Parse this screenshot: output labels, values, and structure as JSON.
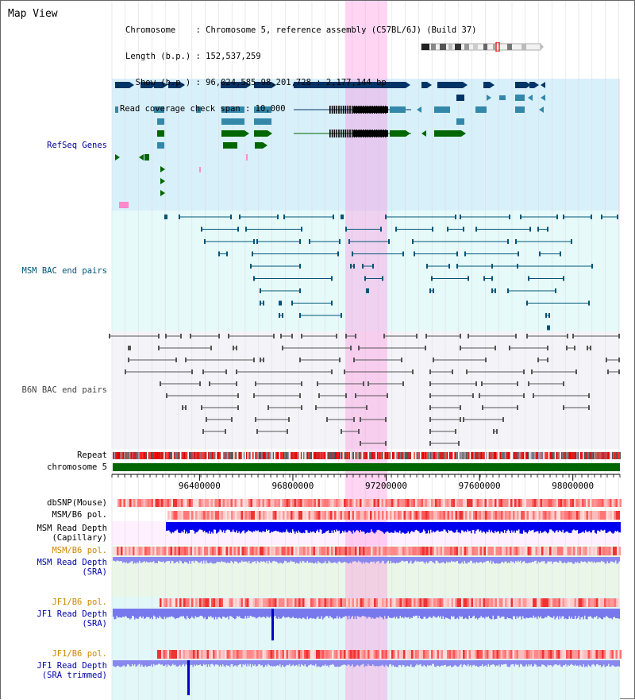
{
  "app": {
    "title": "Map View"
  },
  "info": {
    "chromosome_line": "Chromosome    : Chromosome 5, reference assembly (C57BL/6J) (Build 37)",
    "length_line": "Length (b.p.) : 152,537,259",
    "show_line": "  Show (b.p.) : 96,024,585-98,201,728 : 2,177,144 bp",
    "coverage_line": "Read coverage check span : 10,000"
  },
  "tracks": {
    "refseq": {
      "label": "RefSeq Genes",
      "color": "#000099"
    },
    "msm_bac": {
      "label": "MSM BAC end pairs",
      "color": "#005577"
    },
    "b6n_bac": {
      "label": "B6N BAC end pairs",
      "color": "#444444"
    },
    "repeat": {
      "label": "Repeat"
    },
    "chromosome": {
      "label": "chromosome 5",
      "color": "#006600"
    },
    "dbsnp": {
      "label": "dbSNP(Mouse)"
    },
    "msm_b6_pol_1": {
      "label": "MSM/B6 pol."
    },
    "msm_depth_cap": {
      "label": "MSM Read Depth\n(Capillary)"
    },
    "msm_b6_pol_2": {
      "label": "MSM/B6 pol.",
      "color": "#cc8800"
    },
    "msm_depth_sra": {
      "label": "MSM Read Depth\n(SRA)",
      "color": "#0000aa"
    },
    "jf1_b6_pol_1": {
      "label": "JF1/B6 pol.",
      "color": "#cc8800"
    },
    "jf1_depth_sra": {
      "label": "JF1 Read Depth\n(SRA)",
      "color": "#0000aa"
    },
    "jf1_b6_pol_2": {
      "label": "JF1/B6 pol.",
      "color": "#cc8800"
    },
    "jf1_depth_trimmed": {
      "label": "JF1 Read Depth\n(SRA trimmed)",
      "color": "#0000aa"
    }
  },
  "axis": {
    "ticks": [
      {
        "value": 96400000,
        "label": "96400000"
      },
      {
        "value": 96800000,
        "label": "96800000"
      },
      {
        "value": 97200000,
        "label": "97200000"
      },
      {
        "value": 97600000,
        "label": "97600000"
      },
      {
        "value": 98000000,
        "label": "98000000"
      }
    ]
  },
  "colors": {
    "highlight": "#ff88dd",
    "refseq_bg": "#d8f0fa",
    "msm_bg": "#e6fafa",
    "b6n_bg": "#f4f4f8",
    "gene_dark": "#003366",
    "gene_mid": "#3388aa",
    "gene_green": "#006600",
    "depth_blue": "#0000ee",
    "depth_light": "#7777ee"
  }
}
